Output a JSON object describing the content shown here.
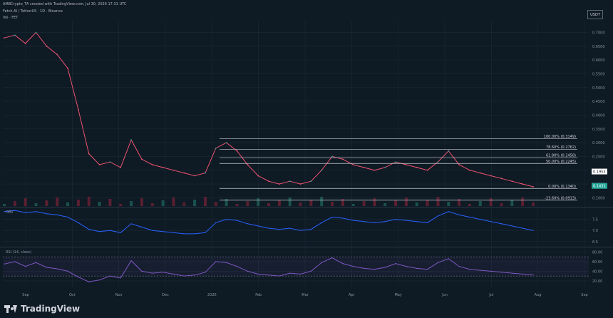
{
  "header": {
    "line1": "AMBCrypto_TA created with TradingView.com, Jul 30, 2026 17:31 UTC",
    "line2": "Fetch.AI / TetherUS · 1D · Binance",
    "line3": "Vol · FET"
  },
  "currency_button": "USDT",
  "brand": "TradingView",
  "chart_data": {
    "type": "line",
    "x_ticks": [
      "Sep",
      "Oct",
      "Nov",
      "Dec",
      "2026",
      "Feb",
      "Mar",
      "Apr",
      "May",
      "Jun",
      "Jul",
      "Aug",
      "Sep"
    ],
    "price_panel": {
      "y_ticks": [
        "0.7000",
        "0.6500",
        "0.6000",
        "0.5500",
        "0.5000",
        "0.4500",
        "0.4000",
        "0.3500",
        "0.3000",
        "0.2500",
        "0.2000",
        "0.1500",
        "0.1000"
      ],
      "y_range": [
        0.07,
        0.74
      ],
      "series": [
        {
          "values": [
            0.68,
            0.69,
            0.66,
            0.7,
            0.65,
            0.62,
            0.57,
            0.42,
            0.26,
            0.22,
            0.23,
            0.21,
            0.31,
            0.24,
            0.22,
            0.21,
            0.2,
            0.19,
            0.18,
            0.19,
            0.28,
            0.3,
            0.27,
            0.22,
            0.18,
            0.16,
            0.15,
            0.16,
            0.15,
            0.16,
            0.2,
            0.25,
            0.24,
            0.22,
            0.21,
            0.2,
            0.21,
            0.23,
            0.22,
            0.21,
            0.2,
            0.23,
            0.27,
            0.22,
            0.2,
            0.19,
            0.18,
            0.17,
            0.16,
            0.15,
            0.14
          ]
        }
      ],
      "fib_levels": [
        {
          "label": "100.00% (0.3149)",
          "value": 0.3149
        },
        {
          "label": "78.60% (0.2762)",
          "value": 0.2762
        },
        {
          "label": "61.80% (0.2458)",
          "value": 0.2458
        },
        {
          "label": "50.00% (0.2245)",
          "value": 0.2245
        },
        {
          "label": "0.00% (0.1340)",
          "value": 0.134
        },
        {
          "label": "-23.60% (0.0913)",
          "value": 0.0913
        }
      ],
      "price_labels": [
        {
          "text": "0.1953",
          "value": 0.1953,
          "color": "#ffffff",
          "text_color": "#131722"
        },
        {
          "text": "0.1431",
          "value": 0.1431,
          "color": "#26a69a",
          "text_color": "#ffffff"
        }
      ]
    },
    "obv_panel": {
      "title": "OBV",
      "y_ticks": [
        "7.5",
        "7.0",
        "6.5"
      ],
      "y_range": [
        6.3,
        8.0
      ],
      "series": [
        {
          "values": [
            7.85,
            7.9,
            7.8,
            7.85,
            7.75,
            7.7,
            7.6,
            7.35,
            7.05,
            6.95,
            7.0,
            6.9,
            7.3,
            7.15,
            7.0,
            6.95,
            6.9,
            6.85,
            6.85,
            6.9,
            7.35,
            7.5,
            7.45,
            7.3,
            7.2,
            7.1,
            7.05,
            7.1,
            7.0,
            7.05,
            7.35,
            7.6,
            7.55,
            7.45,
            7.4,
            7.35,
            7.4,
            7.5,
            7.45,
            7.4,
            7.35,
            7.65,
            7.85,
            7.7,
            7.6,
            7.5,
            7.4,
            7.3,
            7.2,
            7.1,
            7.0
          ]
        }
      ]
    },
    "rsi_panel": {
      "title": "RSI (14, close)",
      "y_ticks": [
        "80.00",
        "60.00",
        "40.00",
        "20.00"
      ],
      "y_range": [
        8,
        88
      ],
      "band": [
        30,
        70
      ],
      "series": [
        {
          "values": [
            55,
            60,
            50,
            58,
            48,
            45,
            40,
            28,
            18,
            22,
            30,
            26,
            62,
            40,
            36,
            38,
            34,
            30,
            32,
            38,
            60,
            58,
            50,
            40,
            34,
            32,
            30,
            36,
            34,
            40,
            58,
            68,
            56,
            50,
            46,
            44,
            48,
            56,
            50,
            46,
            44,
            58,
            66,
            50,
            44,
            42,
            40,
            38,
            36,
            34,
            32
          ]
        }
      ]
    }
  }
}
